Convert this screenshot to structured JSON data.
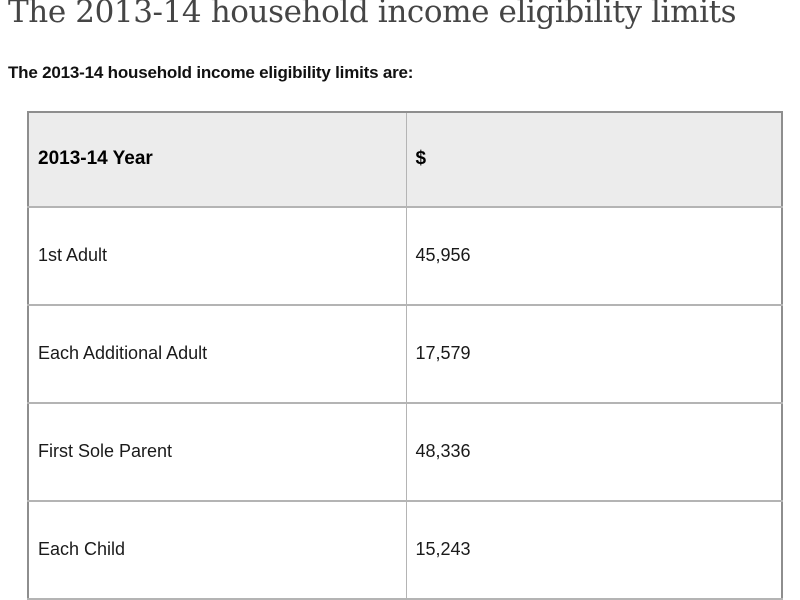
{
  "page": {
    "title": "The 2013-14 household income eligibility limits",
    "intro": "The 2013-14 household income eligibility limits are:"
  },
  "table": {
    "headers": {
      "category": "2013-14 Year",
      "amount": "$"
    },
    "rows": [
      {
        "label": "1st Adult",
        "value": "45,956"
      },
      {
        "label": "Each Additional Adult",
        "value": "17,579"
      },
      {
        "label": "First Sole Parent",
        "value": "48,336"
      },
      {
        "label": "Each Child",
        "value": "15,243"
      }
    ]
  },
  "colors": {
    "heading_text": "#454545",
    "body_text": "#1a1a1a",
    "header_row_bg": "#ececec",
    "table_outer_border": "#8e8e8e",
    "table_inner_border": "#b4b4b4"
  }
}
